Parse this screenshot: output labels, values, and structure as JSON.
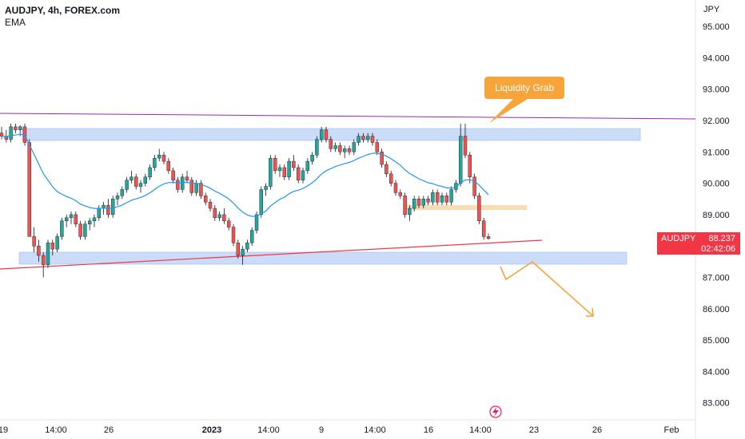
{
  "header": {
    "symbol": "AUDJPY, 4h, FOREX.com",
    "indicator": "EMA"
  },
  "price_axis": {
    "unit": "JPY",
    "current_ticker": "AUDJPY",
    "current_price": "88.237",
    "countdown": "02:42:06"
  },
  "annotation": {
    "label": "Liquidity Grab",
    "color": "#f7a43a"
  },
  "colors": {
    "up": "#26a69a",
    "down": "#ef5350",
    "ema": "#2196f3",
    "zone": "#a9c4f3",
    "resistance_line": "#9c27b0",
    "support_line": "#f23645",
    "orange_zone": "#fbd7a8",
    "arrow": "#f7a43a"
  },
  "chart_data": {
    "type": "candlestick",
    "title": "AUDJPY, 4h, FOREX.com",
    "ylabel": "JPY",
    "ylim": [
      82.6,
      95.7
    ],
    "y_ticks": [
      "95.000",
      "94.000",
      "93.000",
      "92.000",
      "91.000",
      "90.000",
      "89.000",
      "88.000",
      "87.000",
      "86.000",
      "85.000",
      "84.000",
      "83.000"
    ],
    "x_ticks": [
      "19",
      "14:00",
      "26",
      "2023",
      "14:00",
      "9",
      "14:00",
      "16",
      "14:00",
      "23",
      "26",
      "Feb"
    ],
    "grid": false,
    "indicator": "EMA",
    "candles": [
      [
        91.6,
        91.8,
        91.4,
        91.5
      ],
      [
        91.5,
        91.7,
        91.3,
        91.4
      ],
      [
        91.4,
        91.9,
        91.3,
        91.8
      ],
      [
        91.8,
        91.9,
        91.6,
        91.7
      ],
      [
        91.7,
        91.85,
        91.5,
        91.8
      ],
      [
        91.8,
        91.9,
        91.2,
        91.3
      ],
      [
        91.3,
        91.4,
        88.3,
        88.3
      ],
      [
        88.3,
        88.6,
        87.8,
        88.0
      ],
      [
        88.0,
        88.2,
        87.5,
        87.7
      ],
      [
        87.7,
        87.8,
        87.0,
        87.4
      ],
      [
        87.4,
        88.2,
        87.3,
        88.1
      ],
      [
        88.1,
        88.2,
        87.7,
        87.9
      ],
      [
        87.9,
        88.4,
        87.8,
        88.3
      ],
      [
        88.3,
        88.9,
        88.2,
        88.8
      ],
      [
        88.8,
        89.0,
        88.6,
        88.9
      ],
      [
        88.9,
        89.1,
        88.7,
        89.0
      ],
      [
        89.0,
        89.1,
        88.6,
        88.7
      ],
      [
        88.7,
        88.8,
        88.2,
        88.3
      ],
      [
        88.3,
        88.8,
        88.2,
        88.7
      ],
      [
        88.7,
        88.9,
        88.5,
        88.8
      ],
      [
        88.8,
        89.0,
        88.6,
        88.9
      ],
      [
        88.9,
        89.3,
        88.8,
        89.2
      ],
      [
        89.2,
        89.4,
        89.0,
        89.3
      ],
      [
        89.3,
        89.5,
        88.9,
        89.0
      ],
      [
        89.0,
        89.6,
        88.9,
        89.5
      ],
      [
        89.5,
        89.7,
        89.3,
        89.6
      ],
      [
        89.6,
        89.9,
        89.5,
        89.8
      ],
      [
        89.8,
        90.2,
        89.7,
        90.1
      ],
      [
        90.1,
        90.4,
        90.0,
        90.2
      ],
      [
        90.2,
        90.3,
        89.8,
        89.9
      ],
      [
        89.9,
        90.1,
        89.7,
        90.0
      ],
      [
        90.0,
        90.3,
        89.9,
        90.2
      ],
      [
        90.2,
        90.6,
        90.1,
        90.5
      ],
      [
        90.5,
        90.9,
        90.4,
        90.8
      ],
      [
        90.8,
        91.1,
        90.7,
        90.9
      ],
      [
        90.9,
        91.0,
        90.6,
        90.7
      ],
      [
        90.7,
        90.8,
        90.3,
        90.4
      ],
      [
        90.4,
        90.5,
        90.0,
        90.1
      ],
      [
        90.1,
        90.2,
        89.7,
        89.8
      ],
      [
        89.8,
        90.3,
        89.7,
        90.2
      ],
      [
        90.2,
        90.4,
        90.0,
        90.1
      ],
      [
        90.1,
        90.2,
        89.6,
        89.7
      ],
      [
        89.7,
        90.1,
        89.6,
        90.0
      ],
      [
        90.0,
        90.1,
        89.5,
        89.6
      ],
      [
        89.6,
        89.7,
        89.3,
        89.4
      ],
      [
        89.4,
        89.5,
        89.1,
        89.2
      ],
      [
        89.2,
        89.3,
        88.8,
        88.9
      ],
      [
        88.9,
        89.1,
        88.8,
        89.0
      ],
      [
        89.0,
        89.2,
        88.7,
        88.8
      ],
      [
        88.8,
        88.9,
        88.5,
        88.6
      ],
      [
        88.6,
        88.7,
        88.0,
        88.1
      ],
      [
        88.1,
        88.2,
        87.6,
        87.7
      ],
      [
        87.7,
        88.0,
        87.4,
        87.9
      ],
      [
        87.9,
        88.2,
        87.8,
        88.1
      ],
      [
        88.1,
        88.6,
        88.0,
        88.5
      ],
      [
        88.5,
        89.1,
        88.4,
        89.0
      ],
      [
        89.0,
        89.9,
        88.9,
        89.8
      ],
      [
        89.8,
        90.0,
        89.6,
        89.9
      ],
      [
        89.9,
        90.9,
        89.8,
        90.8
      ],
      [
        90.8,
        90.9,
        90.3,
        90.4
      ],
      [
        90.4,
        90.6,
        90.2,
        90.5
      ],
      [
        90.5,
        90.6,
        90.1,
        90.2
      ],
      [
        90.2,
        90.8,
        90.1,
        90.7
      ],
      [
        90.7,
        90.9,
        90.4,
        90.5
      ],
      [
        90.5,
        90.6,
        90.0,
        90.1
      ],
      [
        90.1,
        90.5,
        90.0,
        90.4
      ],
      [
        90.4,
        90.8,
        90.3,
        90.7
      ],
      [
        90.7,
        91.0,
        90.6,
        90.9
      ],
      [
        90.9,
        91.5,
        90.8,
        91.4
      ],
      [
        91.4,
        91.8,
        91.3,
        91.7
      ],
      [
        91.7,
        91.8,
        91.3,
        91.4
      ],
      [
        91.4,
        91.5,
        91.0,
        91.1
      ],
      [
        91.1,
        91.3,
        91.0,
        91.2
      ],
      [
        91.2,
        91.3,
        90.9,
        91.0
      ],
      [
        91.0,
        91.2,
        90.8,
        91.1
      ],
      [
        91.1,
        91.2,
        90.9,
        91.0
      ],
      [
        91.0,
        91.4,
        90.9,
        91.3
      ],
      [
        91.3,
        91.6,
        91.2,
        91.5
      ],
      [
        91.5,
        91.6,
        91.3,
        91.4
      ],
      [
        91.4,
        91.6,
        91.3,
        91.5
      ],
      [
        91.5,
        91.6,
        91.2,
        91.3
      ],
      [
        91.3,
        91.4,
        90.9,
        91.0
      ],
      [
        91.0,
        91.1,
        90.5,
        90.6
      ],
      [
        90.6,
        90.7,
        90.2,
        90.3
      ],
      [
        90.3,
        90.4,
        89.9,
        90.0
      ],
      [
        90.0,
        90.1,
        89.6,
        89.7
      ],
      [
        89.7,
        89.8,
        89.5,
        89.6
      ],
      [
        89.6,
        89.7,
        88.9,
        89.0
      ],
      [
        89.0,
        89.3,
        88.8,
        89.2
      ],
      [
        89.2,
        89.6,
        89.1,
        89.5
      ],
      [
        89.5,
        89.6,
        89.2,
        89.3
      ],
      [
        89.3,
        89.6,
        89.2,
        89.5
      ],
      [
        89.5,
        89.6,
        89.3,
        89.4
      ],
      [
        89.4,
        89.8,
        89.3,
        89.7
      ],
      [
        89.7,
        89.8,
        89.3,
        89.4
      ],
      [
        89.4,
        89.7,
        89.3,
        89.6
      ],
      [
        89.6,
        89.7,
        89.3,
        89.4
      ],
      [
        89.4,
        89.9,
        89.3,
        89.8
      ],
      [
        89.8,
        90.1,
        89.7,
        90.0
      ],
      [
        90.0,
        91.9,
        89.9,
        91.5
      ],
      [
        91.5,
        91.9,
        90.8,
        90.9
      ],
      [
        90.9,
        91.0,
        90.0,
        90.2
      ],
      [
        90.2,
        90.3,
        89.5,
        89.6
      ],
      [
        89.6,
        89.7,
        88.7,
        88.8
      ],
      [
        88.8,
        88.9,
        88.2,
        88.3
      ],
      [
        88.3,
        88.4,
        88.2,
        88.24
      ]
    ]
  }
}
